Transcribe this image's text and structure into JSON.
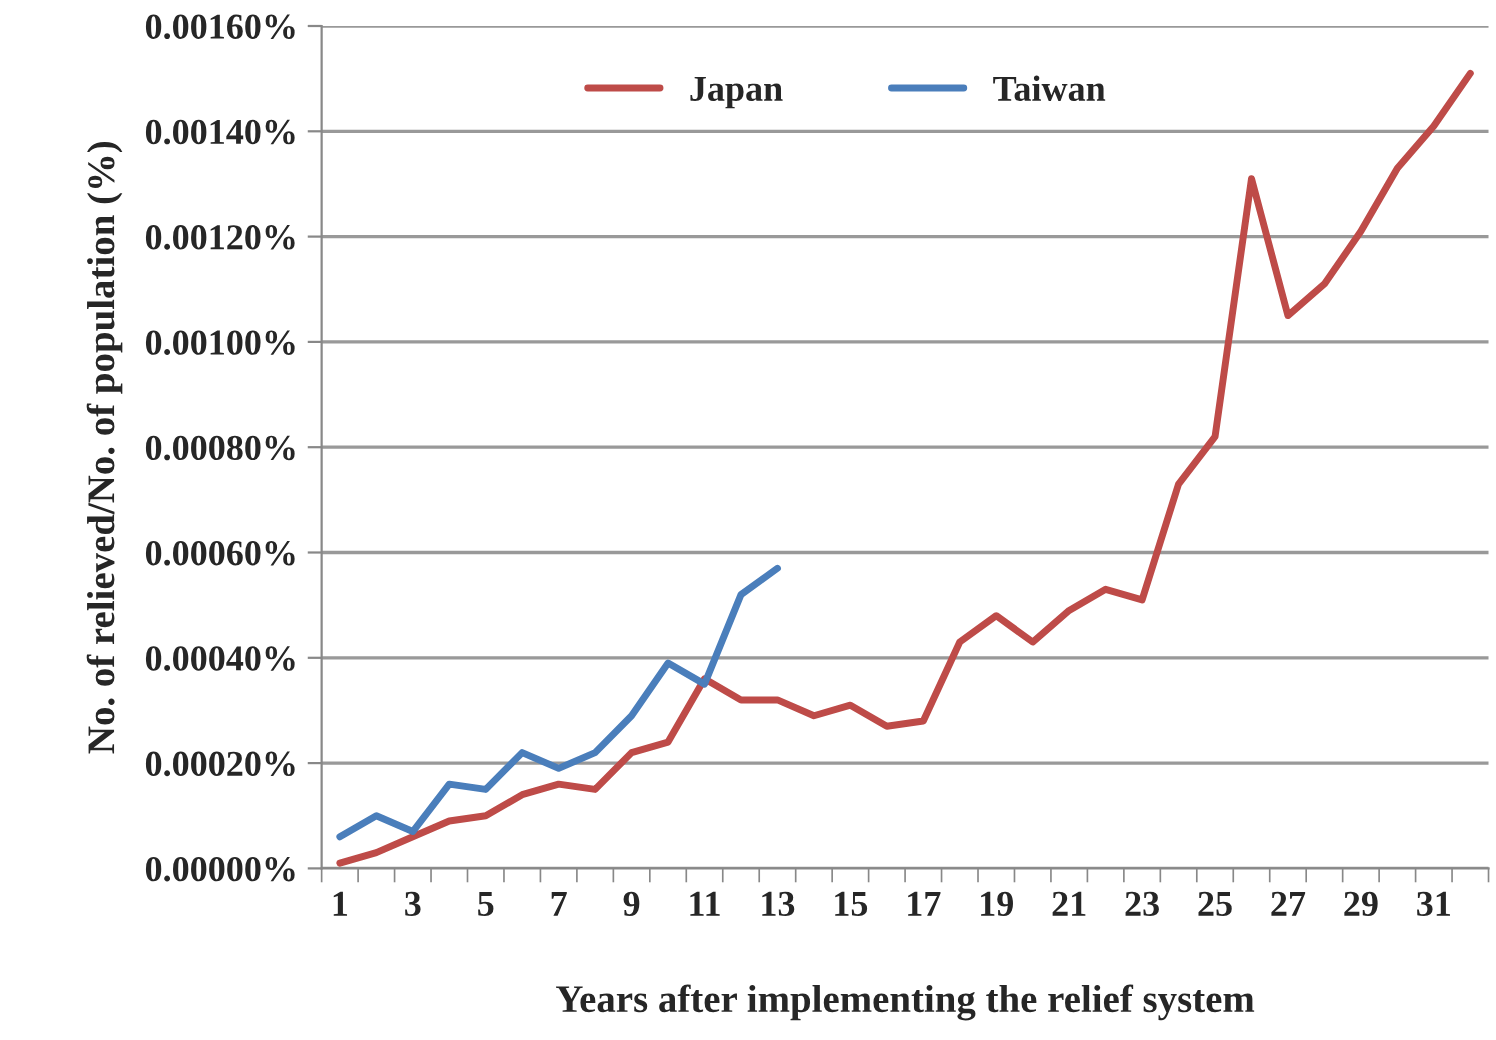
{
  "chart_data": {
    "type": "line",
    "xlabel": "Years after implementing the relief system",
    "ylabel": "No. of relieved/No. of population (%)",
    "categories": [
      "1",
      null,
      "3",
      null,
      "5",
      null,
      "7",
      null,
      "9",
      null,
      "11",
      null,
      "13",
      null,
      "15",
      null,
      "17",
      null,
      "19",
      null,
      "21",
      null,
      "23",
      null,
      "25",
      null,
      "27",
      null,
      "29",
      null,
      "31",
      null
    ],
    "series": [
      {
        "name": "Japan",
        "color": "#be4b48",
        "values": [
          1e-05,
          3e-05,
          6e-05,
          9e-05,
          0.0001,
          0.00014,
          0.00016,
          0.00015,
          0.00022,
          0.00024,
          0.00036,
          0.00032,
          0.00032,
          0.00029,
          0.00031,
          0.00027,
          0.00028,
          0.00043,
          0.00048,
          0.00043,
          0.00049,
          0.00053,
          0.00051,
          0.00073,
          0.00082,
          0.00131,
          0.00105,
          0.00111,
          0.00121,
          0.00133,
          0.00141,
          0.00151
        ]
      },
      {
        "name": "Taiwan",
        "color": "#4a7ebb",
        "values": [
          6e-05,
          0.0001,
          7e-05,
          0.00016,
          0.00015,
          0.00022,
          0.00019,
          0.00022,
          0.00029,
          0.00039,
          0.00035,
          0.00052,
          0.00057,
          null,
          null,
          null,
          null,
          null,
          null,
          null,
          null,
          null,
          null,
          null,
          null,
          null,
          null,
          null,
          null,
          null,
          null,
          null
        ]
      }
    ],
    "ylim": [
      0,
      0.0016
    ],
    "yticks": [
      {
        "value": 0,
        "label": "0.00000%"
      },
      {
        "value": 0.0002,
        "label": "0.00020%"
      },
      {
        "value": 0.0004,
        "label": "0.00040%"
      },
      {
        "value": 0.0006,
        "label": "0.00060%"
      },
      {
        "value": 0.0008,
        "label": "0.00080%"
      },
      {
        "value": 0.001,
        "label": "0.00100%"
      },
      {
        "value": 0.0012,
        "label": "0.00120%"
      },
      {
        "value": 0.0014,
        "label": "0.00140%"
      },
      {
        "value": 0.0016,
        "label": "0.00160%"
      }
    ],
    "grid": "y",
    "legend": "top",
    "marker": "none",
    "line_style": "solid"
  }
}
